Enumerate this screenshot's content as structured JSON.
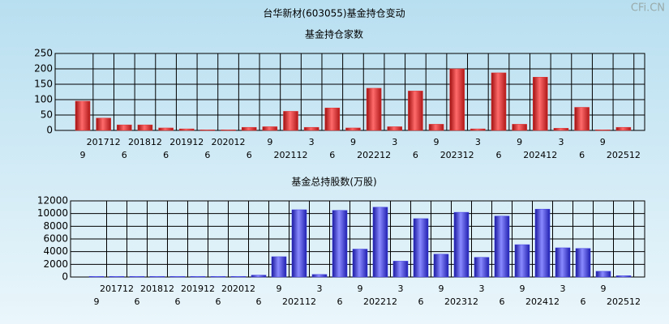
{
  "title": "台华新材(603055)基金持仓变动",
  "watermark": "CFi.CN",
  "chart_data": [
    {
      "type": "bar",
      "title": "基金持仓家数",
      "color": "#e03030",
      "categories": [
        "9",
        "201712",
        "6",
        "201812",
        "6",
        "201912",
        "6",
        "202012",
        "6",
        "9",
        "202112",
        "3",
        "6",
        "9",
        "202212",
        "3",
        "6",
        "9",
        "202312",
        "3",
        "6",
        "9",
        "202412",
        "3",
        "6",
        "9",
        "202512"
      ],
      "values": [
        95,
        40,
        18,
        18,
        8,
        5,
        2,
        2,
        10,
        12,
        62,
        10,
        73,
        8,
        137,
        12,
        128,
        20,
        200,
        5,
        187,
        20,
        173,
        7,
        75,
        2,
        10
      ],
      "ylim": [
        0,
        250
      ],
      "yticks": [
        0,
        50,
        100,
        150,
        200,
        250
      ],
      "grid": true
    },
    {
      "type": "bar",
      "title": "基金总持股数(万股)",
      "color": "#3a3ae0",
      "categories": [
        "9",
        "201712",
        "6",
        "201812",
        "6",
        "201912",
        "6",
        "202012",
        "6",
        "9",
        "202112",
        "3",
        "6",
        "9",
        "202212",
        "3",
        "6",
        "9",
        "202312",
        "3",
        "6",
        "9",
        "202412",
        "3",
        "6",
        "9",
        "202512"
      ],
      "values": [
        100,
        100,
        100,
        100,
        100,
        100,
        100,
        100,
        300,
        3200,
        10600,
        400,
        10500,
        4400,
        11000,
        2500,
        9200,
        3600,
        10200,
        3100,
        9600,
        5100,
        10700,
        4600,
        4500,
        900,
        200
      ],
      "ylim": [
        0,
        12000
      ],
      "yticks": [
        0,
        2000,
        4000,
        6000,
        8000,
        10000,
        12000
      ],
      "grid": true
    }
  ]
}
